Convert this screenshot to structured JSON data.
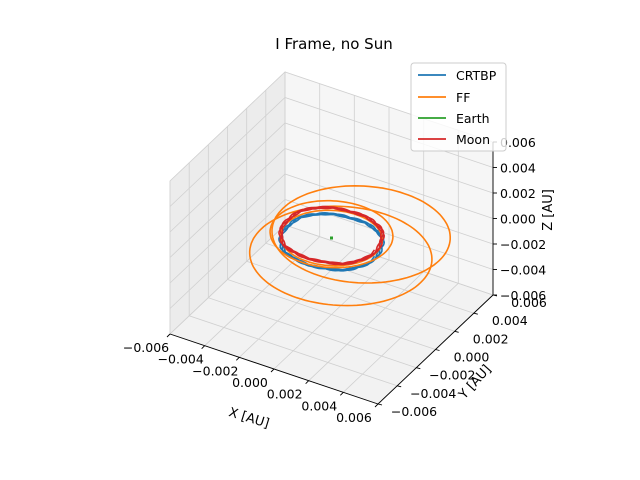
{
  "chart_data": {
    "type": "line",
    "projection": "3d",
    "title": "I Frame, no Sun",
    "xlabel": "X [AU]",
    "ylabel": "Y [AU]",
    "zlabel": "Z [AU]",
    "xlim": [
      -0.006,
      0.006
    ],
    "ylim": [
      -0.006,
      0.006
    ],
    "zlim": [
      -0.006,
      0.006
    ],
    "xticks": [
      "−0.006",
      "−0.004",
      "−0.002",
      "0.000",
      "0.002",
      "0.004",
      "0.006"
    ],
    "yticks": [
      "−0.006",
      "−0.004",
      "−0.002",
      "0.000",
      "0.002",
      "0.004",
      "0.006"
    ],
    "zticks": [
      "−0.006",
      "−0.004",
      "−0.002",
      "0.000",
      "0.002",
      "0.004",
      "0.006"
    ],
    "grid": true,
    "legend_position": "top-right",
    "series": [
      {
        "name": "CRTBP",
        "color": "#1f77b4",
        "shape": "ellipse",
        "center": [
          0.0,
          0.0,
          -0.0003
        ],
        "semi_axes": [
          0.00257,
          0.00257
        ],
        "revolutions": 3
      },
      {
        "name": "FF",
        "color": "#ff7f0e",
        "shape": "ellipses",
        "loops": [
          {
            "center": [
              0.0,
              0.0,
              0.0
            ],
            "semi_axes": [
              0.00257,
              0.00257
            ]
          },
          {
            "center": [
              0.0012,
              -0.0012,
              0.0
            ],
            "semi_axes": [
              0.0046,
              0.0046
            ]
          },
          {
            "center": [
              0.0011,
              0.0011,
              0.0
            ],
            "semi_axes": [
              0.0045,
              0.0045
            ]
          },
          {
            "center": [
              0.0,
              0.0,
              0.0003
            ],
            "semi_axes": [
              0.0031,
              0.0031
            ]
          }
        ]
      },
      {
        "name": "Earth",
        "color": "#2ca02c",
        "shape": "point",
        "center": [
          0.0,
          0.0,
          0.0
        ]
      },
      {
        "name": "Moon",
        "color": "#d62728",
        "shape": "ellipse",
        "center": [
          0.0,
          0.0,
          0.0002
        ],
        "semi_axes": [
          0.00257,
          0.00257
        ],
        "revolutions": 3
      }
    ]
  }
}
